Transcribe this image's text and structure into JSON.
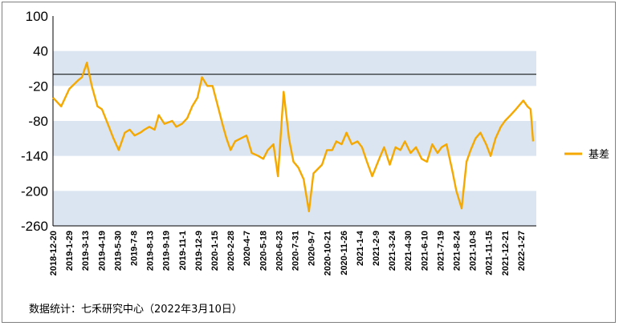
{
  "chart_data": {
    "type": "line",
    "title": "",
    "xlabel": "",
    "ylabel": "",
    "ylim": [
      -260,
      100
    ],
    "yticks": [
      100,
      40,
      -20,
      -80,
      -140,
      -200,
      -260
    ],
    "x_tick_labels": [
      "2018-12-20",
      "2019-1-29",
      "2019-3-13",
      "2019-4-19",
      "2019-5-30",
      "2019-7-8",
      "2019-8-13",
      "2019-9-19",
      "2019-11-1",
      "2019-12-9",
      "2020-1-15",
      "2020-2-28",
      "2020-4-7",
      "2020-5-18",
      "2020-6-23",
      "2020-7-31",
      "2020-9-7",
      "2020-10-21",
      "2020-11-26",
      "2021-1-4",
      "2021-2-9",
      "2021-3-24",
      "2021-4-30",
      "2021-6-10",
      "2021-7-19",
      "2021-8-24",
      "2021-10-8",
      "2021-11-15",
      "2021-12-21",
      "2022-1-27"
    ],
    "reference_line": 0,
    "shaded_bands": [
      [
        -20,
        40
      ],
      [
        -140,
        -80
      ],
      [
        -260,
        -200
      ]
    ],
    "grid": false,
    "legend_position": "right",
    "series": [
      {
        "name": "基差",
        "color": "#f5a800",
        "x": [
          "2018-12-20",
          "2019-1-9",
          "2019-1-29",
          "2019-2-20",
          "2019-3-1",
          "2019-3-13",
          "2019-3-25",
          "2019-4-8",
          "2019-4-19",
          "2019-5-6",
          "2019-5-17",
          "2019-5-30",
          "2019-6-14",
          "2019-6-26",
          "2019-7-8",
          "2019-7-22",
          "2019-8-1",
          "2019-8-13",
          "2019-8-26",
          "2019-9-5",
          "2019-9-19",
          "2019-10-8",
          "2019-10-18",
          "2019-11-1",
          "2019-11-14",
          "2019-11-26",
          "2019-12-9",
          "2019-12-20",
          "2020-1-2",
          "2020-1-15",
          "2020-2-10",
          "2020-2-18",
          "2020-2-28",
          "2020-3-10",
          "2020-3-24",
          "2020-4-7",
          "2020-4-20",
          "2020-5-6",
          "2020-5-18",
          "2020-5-29",
          "2020-6-12",
          "2020-6-23",
          "2020-7-7",
          "2020-7-20",
          "2020-7-31",
          "2020-8-12",
          "2020-8-25",
          "2020-9-7",
          "2020-9-18",
          "2020-10-9",
          "2020-10-21",
          "2020-11-3",
          "2020-11-13",
          "2020-11-26",
          "2020-12-8",
          "2020-12-21",
          "2021-1-4",
          "2021-1-15",
          "2021-1-27",
          "2021-2-9",
          "2021-2-26",
          "2021-3-10",
          "2021-3-24",
          "2021-4-7",
          "2021-4-19",
          "2021-4-30",
          "2021-5-14",
          "2021-5-27",
          "2021-6-10",
          "2021-6-23",
          "2021-7-6",
          "2021-7-19",
          "2021-7-29",
          "2021-8-10",
          "2021-8-24",
          "2021-9-3",
          "2021-9-16",
          "2021-9-28",
          "2021-10-8",
          "2021-10-20",
          "2021-11-1",
          "2021-11-15",
          "2021-11-26",
          "2021-12-8",
          "2021-12-21",
          "2021-12-31",
          "2022-1-14",
          "2022-1-27",
          "2022-2-14",
          "2022-2-24",
          "2022-3-4",
          "2022-3-10"
        ],
        "values": [
          -40,
          -55,
          -25,
          -10,
          -5,
          20,
          -20,
          -55,
          -60,
          -90,
          -110,
          -130,
          -100,
          -95,
          -105,
          -100,
          -95,
          -90,
          -95,
          -70,
          -85,
          -80,
          -90,
          -85,
          -75,
          -55,
          -40,
          -5,
          -20,
          -20,
          -90,
          -110,
          -130,
          -115,
          -110,
          -105,
          -135,
          -140,
          -145,
          -130,
          -120,
          -175,
          -30,
          -110,
          -150,
          -160,
          -180,
          -235,
          -170,
          -155,
          -130,
          -130,
          -115,
          -120,
          -100,
          -120,
          -115,
          -125,
          -150,
          -175,
          -145,
          -125,
          -155,
          -125,
          -130,
          -115,
          -135,
          -125,
          -145,
          -150,
          -120,
          -135,
          -125,
          -120,
          -165,
          -200,
          -230,
          -150,
          -130,
          -110,
          -100,
          -120,
          -140,
          -110,
          -90,
          -80,
          -70,
          -60,
          -45,
          -55,
          -60,
          -115
        ]
      }
    ]
  },
  "legend": {
    "label": "基差"
  },
  "footer": {
    "source": "数据统计：七禾研究中心（2022年3月10日）"
  }
}
